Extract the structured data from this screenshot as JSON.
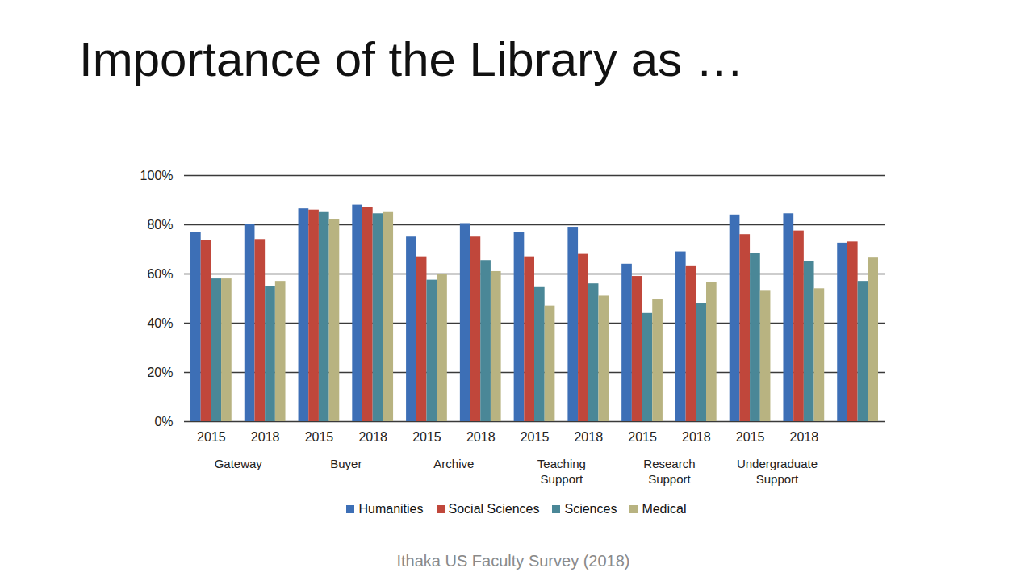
{
  "chart_data": {
    "type": "bar",
    "title": "Importance of the Library as …",
    "caption": "Ithaka US Faculty Survey (2018)",
    "categories": [
      "2015",
      "2018",
      "2015",
      "2018",
      "2015",
      "2018",
      "2015",
      "2018",
      "2015",
      "2018",
      "2015",
      "2018",
      null
    ],
    "groups": [
      "Gateway",
      "Gateway",
      "Buyer",
      "Buyer",
      "Archive",
      "Archive",
      "Teaching Support",
      "Teaching Support",
      "Research Support",
      "Research Support",
      "Undergraduate Support",
      "Undergraduate Support",
      null
    ],
    "series": [
      {
        "name": "Humanities",
        "color": "#3d6fb6",
        "values": [
          77,
          80,
          86.5,
          88,
          75,
          80.5,
          77,
          79,
          64,
          69,
          84,
          84.5,
          72.5
        ]
      },
      {
        "name": "Social Sciences",
        "color": "#c0473b",
        "values": [
          73.5,
          74,
          86,
          87,
          67,
          75,
          67,
          68,
          59,
          63,
          76,
          77.5,
          73
        ]
      },
      {
        "name": "Sciences",
        "color": "#4a8797",
        "values": [
          58,
          55,
          85,
          84.5,
          57.5,
          65.5,
          54.5,
          56,
          44,
          48,
          68.5,
          65,
          57
        ]
      },
      {
        "name": "Medical",
        "color": "#b8b381",
        "values": [
          58,
          57,
          82,
          85,
          60,
          61,
          47,
          51,
          49.5,
          56.5,
          53,
          54,
          66.5
        ]
      }
    ],
    "ylim": [
      0,
      100
    ],
    "yticks": [
      {
        "value": 0,
        "label": "0%"
      },
      {
        "value": 20,
        "label": "20%"
      },
      {
        "value": 40,
        "label": "40%"
      },
      {
        "value": 60,
        "label": "60%"
      },
      {
        "value": 80,
        "label": "80%"
      },
      {
        "value": 100,
        "label": "100%"
      }
    ],
    "grid": true,
    "legend": "bottom"
  }
}
